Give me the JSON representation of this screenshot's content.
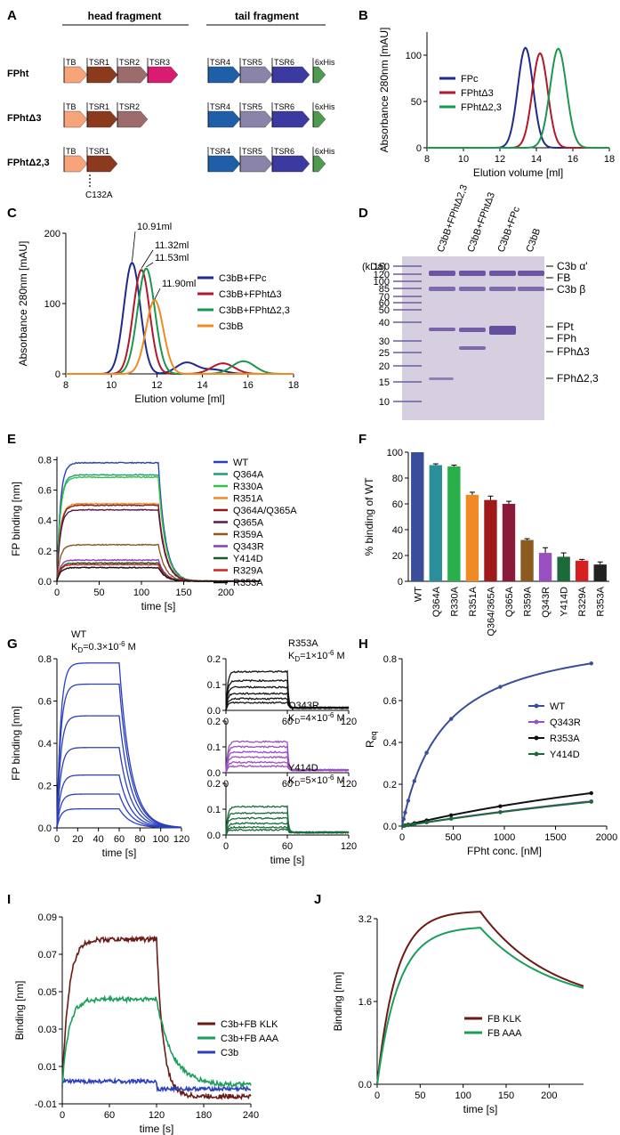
{
  "panel_labels": [
    "A",
    "B",
    "C",
    "D",
    "E",
    "F",
    "G",
    "H",
    "I",
    "J"
  ],
  "colors": {
    "navy": "#1f2a8c",
    "darkred": "#b2182b",
    "green": "#1a9850",
    "orange": "#f08a24",
    "brown": "#6b1a14",
    "teal": "#1e9e78",
    "blue": "#2a3fbf",
    "gelbg": "#d6cfe0",
    "band": "#5a3f98"
  },
  "panelA": {
    "head_title": "head fragment",
    "tail_title": "tail fragment",
    "constructs": [
      {
        "name": "FPht",
        "head": [
          "TB",
          "TSR1",
          "TSR2",
          "TSR3"
        ],
        "tail": [
          "TSR4",
          "TSR5",
          "TSR6",
          "6xHis"
        ]
      },
      {
        "name": "FPhtΔ3",
        "head": [
          "TB",
          "TSR1",
          "TSR2"
        ],
        "tail": [
          "TSR4",
          "TSR5",
          "TSR6",
          "6xHis"
        ]
      },
      {
        "name": "FPhtΔ2,3",
        "head": [
          "TB",
          "TSR1"
        ],
        "tail": [
          "TSR4",
          "TSR5",
          "TSR6",
          "6xHis"
        ],
        "mutation": "C132A"
      }
    ],
    "domain_colors": {
      "TB": "#f7a47a",
      "TSR1": "#8b3a1e",
      "TSR2": "#9c6b6b",
      "TSR3": "#d91b72",
      "TSR4": "#1f5fa8",
      "TSR5": "#8a84a8",
      "TSR6": "#3a3aa0",
      "6xHis": "#4e9a4e"
    }
  },
  "chart_data": [
    {
      "id": "B",
      "type": "line",
      "ylabel": "Absorbance 280nm [mAU]",
      "xlabel": "Elution volume [ml]",
      "xlim": [
        8,
        18
      ],
      "ylim": [
        0,
        125
      ],
      "xticks": [
        8,
        10,
        12,
        14,
        16,
        18
      ],
      "yticks": [
        0,
        50,
        100
      ],
      "series": [
        {
          "name": "FPc",
          "color": "#1f2a8c",
          "peaks": [
            {
              "x": 13.4,
              "h": 108,
              "w": 0.42
            }
          ]
        },
        {
          "name": "FPhtΔ3",
          "color": "#b2182b",
          "peaks": [
            {
              "x": 14.2,
              "h": 102,
              "w": 0.42
            }
          ]
        },
        {
          "name": "FPhtΔ2,3",
          "color": "#1a9850",
          "peaks": [
            {
              "x": 15.2,
              "h": 107,
              "w": 0.45
            }
          ]
        }
      ],
      "legend": [
        "FPc",
        "FPhtΔ3",
        "FPhtΔ2,3"
      ]
    },
    {
      "id": "C",
      "type": "line",
      "ylabel": "Absorbance 280nm [mAU]",
      "xlabel": "Elution volume [ml]",
      "xlim": [
        8,
        18
      ],
      "ylim": [
        0,
        200
      ],
      "xticks": [
        8,
        10,
        12,
        14,
        16,
        18
      ],
      "yticks": [
        0,
        100,
        200
      ],
      "series": [
        {
          "name": "C3bB+FPc",
          "color": "#1f2a8c",
          "peaks": [
            {
              "x": 10.91,
              "h": 158,
              "w": 0.36
            },
            {
              "x": 13.3,
              "h": 16,
              "w": 0.45
            },
            {
              "x": 14.5,
              "h": 6,
              "w": 0.5
            }
          ]
        },
        {
          "name": "C3bB+FPhtΔ3",
          "color": "#b2182b",
          "peaks": [
            {
              "x": 11.32,
              "h": 148,
              "w": 0.36
            },
            {
              "x": 14.9,
              "h": 15,
              "w": 0.5
            }
          ]
        },
        {
          "name": "C3bB+FPhtΔ2,3",
          "color": "#1a9850",
          "peaks": [
            {
              "x": 11.53,
              "h": 150,
              "w": 0.38
            },
            {
              "x": 15.8,
              "h": 18,
              "w": 0.5
            }
          ]
        },
        {
          "name": "C3bB",
          "color": "#f08a24",
          "peaks": [
            {
              "x": 11.9,
              "h": 105,
              "w": 0.38
            }
          ]
        }
      ],
      "annotations": [
        "10.91ml",
        "11.32ml",
        "11.53ml",
        "11.90ml"
      ],
      "legend": [
        "C3bB+FPc",
        "C3bB+FPhtΔ3",
        "C3bB+FPhtΔ2,3",
        "C3bB"
      ]
    },
    {
      "id": "E",
      "type": "line",
      "ylabel": "FP binding [nm]",
      "xlabel": "time [s]",
      "xlim": [
        0,
        240
      ],
      "ylim": [
        0,
        0.82
      ],
      "xticks": [
        0,
        50,
        100,
        150,
        200
      ],
      "yticks": [
        0.0,
        0.2,
        0.4,
        0.6,
        0.8
      ],
      "assoc_end": 120,
      "series": [
        {
          "name": "WT",
          "color": "#2a3fbf",
          "plateau": 0.78
        },
        {
          "name": "Q364A",
          "color": "#1e9e78",
          "plateau": 0.7
        },
        {
          "name": "R330A",
          "color": "#33c24a",
          "plateau": 0.685
        },
        {
          "name": "R351A",
          "color": "#f08a24",
          "plateau": 0.51
        },
        {
          "name": "Q364A/Q365A",
          "color": "#8b1a1a",
          "plateau": 0.5
        },
        {
          "name": "Q365A",
          "color": "#5a1a4a",
          "plateau": 0.47
        },
        {
          "name": "R359A",
          "color": "#8b5a1e",
          "plateau": 0.24
        },
        {
          "name": "Q343R",
          "color": "#8a3fb0",
          "plateau": 0.14
        },
        {
          "name": "Y414D",
          "color": "#1a5a2a",
          "plateau": 0.12
        },
        {
          "name": "R329A",
          "color": "#d42020",
          "plateau": 0.11
        },
        {
          "name": "R353A",
          "color": "#111111",
          "plateau": 0.09
        }
      ]
    },
    {
      "id": "F",
      "type": "bar",
      "ylabel": "% binding of WT",
      "ylim": [
        0,
        100
      ],
      "yticks": [
        0,
        20,
        40,
        60,
        80,
        100
      ],
      "categories": [
        "WT",
        "Q364A",
        "R330A",
        "R351A",
        "Q364/365A",
        "Q365A",
        "R359A",
        "Q343R",
        "Y414D",
        "R329A",
        "R353A"
      ],
      "values": [
        100,
        90,
        89,
        67,
        63,
        60,
        32,
        22,
        19,
        16,
        13
      ],
      "errors": [
        0,
        1,
        1,
        2,
        3,
        2,
        1,
        4,
        3,
        1,
        2
      ],
      "colors": [
        "#3a4d9a",
        "#2a8f9a",
        "#2ab04a",
        "#f08a24",
        "#a01a1a",
        "#8b1a3a",
        "#8b5a1e",
        "#9a4fc0",
        "#1a6a3a",
        "#d42020",
        "#222222"
      ]
    },
    {
      "id": "G",
      "type": "line",
      "ylabel": "FP binding [nm]",
      "xlabel": "time [s]",
      "subplots": [
        {
          "label": "WT",
          "kd": "K",
          "kd_sub": "D",
          "kd_val": "=0.3×10",
          "kd_exp": "-6",
          "kd_unit": " M",
          "color": "#2a3fbf",
          "xlim": [
            0,
            120
          ],
          "ylim": [
            0,
            0.8
          ],
          "xticks": [
            0,
            20,
            40,
            60,
            80,
            100,
            120
          ],
          "yticks": [
            0.0,
            0.2,
            0.4,
            0.6,
            0.8
          ],
          "plateaus": [
            0.78,
            0.68,
            0.53,
            0.38,
            0.25,
            0.16,
            0.09
          ]
        },
        {
          "label": "R353A",
          "kd": "K",
          "kd_sub": "D",
          "kd_val": "=1×10",
          "kd_exp": "-6",
          "kd_unit": " M",
          "color": "#111111",
          "xlim": [
            0,
            120
          ],
          "ylim": [
            0,
            0.2
          ],
          "xticks": [
            0,
            60,
            120
          ],
          "yticks": [
            0.0,
            0.1,
            0.2
          ],
          "plateaus": [
            0.15,
            0.115,
            0.09,
            0.065,
            0.045,
            0.03
          ]
        },
        {
          "label": "Q343R",
          "kd": "K",
          "kd_sub": "D",
          "kd_val": "=4×10",
          "kd_exp": "-6",
          "kd_unit": " M",
          "color": "#9a4fc0",
          "xlim": [
            0,
            120
          ],
          "ylim": [
            0,
            0.2
          ],
          "xticks": [
            0,
            60,
            120
          ],
          "yticks": [
            0.0,
            0.1,
            0.2
          ],
          "plateaus": [
            0.12,
            0.1,
            0.08,
            0.06,
            0.04,
            0.025
          ]
        },
        {
          "label": "Y414D",
          "kd": "K",
          "kd_sub": "D",
          "kd_val": "=5×10",
          "kd_exp": "-6",
          "kd_unit": " M",
          "color": "#1a6a3a",
          "xlim": [
            0,
            120
          ],
          "ylim": [
            0,
            0.2
          ],
          "xticks": [
            0,
            60,
            120
          ],
          "yticks": [
            0.0,
            0.1,
            0.2
          ],
          "plateaus": [
            0.11,
            0.085,
            0.065,
            0.045,
            0.03,
            0.02
          ]
        }
      ]
    },
    {
      "id": "H",
      "type": "scatter",
      "ylabel": "R",
      "ylabel_sub": "eq",
      "xlabel": "FPht conc. [nM]",
      "xlim": [
        0,
        2000
      ],
      "ylim": [
        0,
        0.8
      ],
      "xticks": [
        0,
        500,
        1000,
        1500,
        2000
      ],
      "yticks": [
        0.0,
        0.2,
        0.4,
        0.6,
        0.8
      ],
      "x": [
        15,
        30,
        60,
        120,
        240,
        480,
        960,
        1850
      ],
      "series": [
        {
          "name": "WT",
          "color": "#3a4d9a",
          "bmax": 0.95,
          "kd": 410
        },
        {
          "name": "Q343R",
          "color": "#9a4fc0",
          "bmax": 0.62,
          "kd": 7800
        },
        {
          "name": "R353A",
          "color": "#111111",
          "bmax": 0.55,
          "kd": 4600
        },
        {
          "name": "Y414D",
          "color": "#1a6a3a",
          "bmax": 0.62,
          "kd": 8000
        }
      ]
    },
    {
      "id": "I",
      "type": "line",
      "ylabel": "Binding [nm]",
      "xlabel": "time [s]",
      "xlim": [
        0,
        240
      ],
      "ylim": [
        -0.01,
        0.09
      ],
      "xticks": [
        0,
        60,
        120,
        180,
        240
      ],
      "yticks": [
        -0.01,
        0.01,
        0.03,
        0.05,
        0.07,
        0.09
      ],
      "assoc_end": 120,
      "series": [
        {
          "name": "C3b+FB KLK",
          "color": "#6b1a14",
          "plateau": 0.078
        },
        {
          "name": "C3b+FB AAA",
          "color": "#1a9e5a",
          "plateau": 0.046
        },
        {
          "name": "C3b",
          "color": "#2a3fbf",
          "plateau": 0.002
        }
      ]
    },
    {
      "id": "J",
      "type": "line",
      "ylabel": "Binding [nm]",
      "xlabel": "time [s]",
      "xlim": [
        0,
        240
      ],
      "ylim": [
        0,
        3.2
      ],
      "xticks": [
        0,
        50,
        100,
        150,
        200
      ],
      "yticks": [
        0.0,
        1.6,
        3.2
      ],
      "assoc_end": 120,
      "series": [
        {
          "name": "FB KLK",
          "color": "#6b1a14",
          "plateau": 3.35,
          "end": 2.05
        },
        {
          "name": "FB AAA",
          "color": "#1a9e5a",
          "plateau": 3.05,
          "end": 2.1
        }
      ]
    }
  ],
  "gel": {
    "kda_label": "(kDa)",
    "markers": [
      "150",
      "120",
      "100",
      "85",
      "70",
      "60",
      "50",
      "40",
      "30",
      "25",
      "20",
      "15",
      "10"
    ],
    "lanes": [
      "C3bB+FPhtΔ2,3",
      "C3bB+FPhtΔ3",
      "C3bB+FPc",
      "C3bB"
    ],
    "band_labels": [
      "C3b α'",
      "FB",
      "C3b  β",
      "FPt",
      "FPh",
      "FPhΔ3",
      "FPhΔ2,3"
    ]
  }
}
